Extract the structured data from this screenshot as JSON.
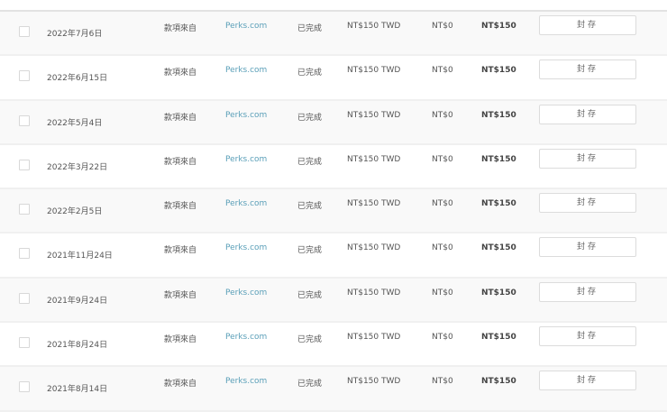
{
  "rows": [
    {
      "date": "2022年7月6日",
      "source": "款項來自",
      "payer": "Perks.com",
      "status": "已完成",
      "amount": "NT$150 TWD",
      "fee": "NT$0",
      "total": "NT$150",
      "action": "封存"
    },
    {
      "date": "2022年6月15日",
      "source": "款項來自",
      "payer": "Perks.com",
      "status": "已完成",
      "amount": "NT$150 TWD",
      "fee": "NT$0",
      "total": "NT$150",
      "action": "封存"
    },
    {
      "date": "2022年5月4日",
      "source": "款項來自",
      "payer": "Perks.com",
      "status": "已完成",
      "amount": "NT$150 TWD",
      "fee": "NT$0",
      "total": "NT$150",
      "action": "封存"
    },
    {
      "date": "2022年3月22日",
      "source": "款項來自",
      "payer": "Perks.com",
      "status": "已完成",
      "amount": "NT$150 TWD",
      "fee": "NT$0",
      "total": "NT$150",
      "action": "封存"
    },
    {
      "date": "2022年2月5日",
      "source": "款項來自",
      "payer": "Perks.com",
      "status": "已完成",
      "amount": "NT$150 TWD",
      "fee": "NT$0",
      "total": "NT$150",
      "action": "封存"
    },
    {
      "date": "2021年11月24日",
      "source": "款項來自",
      "payer": "Perks.com",
      "status": "已完成",
      "amount": "NT$150 TWD",
      "fee": "NT$0",
      "total": "NT$150",
      "action": "封存"
    },
    {
      "date": "2021年9月24日",
      "source": "款項來自",
      "payer": "Perks.com",
      "status": "已完成",
      "amount": "NT$150 TWD",
      "fee": "NT$0",
      "total": "NT$150",
      "action": "封存"
    },
    {
      "date": "2021年8月24日",
      "source": "款項來自",
      "payer": "Perks.com",
      "status": "已完成",
      "amount": "NT$150 TWD",
      "fee": "NT$0",
      "total": "NT$150",
      "action": "封存"
    },
    {
      "date": "2021年8月14日",
      "source": "款項來自",
      "payer": "Perks.com",
      "status": "已完成",
      "amount": "NT$150 TWD",
      "fee": "NT$0",
      "total": "NT$150",
      "action": "封存"
    }
  ],
  "colors": {
    "link": "#5a9fb8",
    "row_alt": "#f9f9f9"
  }
}
